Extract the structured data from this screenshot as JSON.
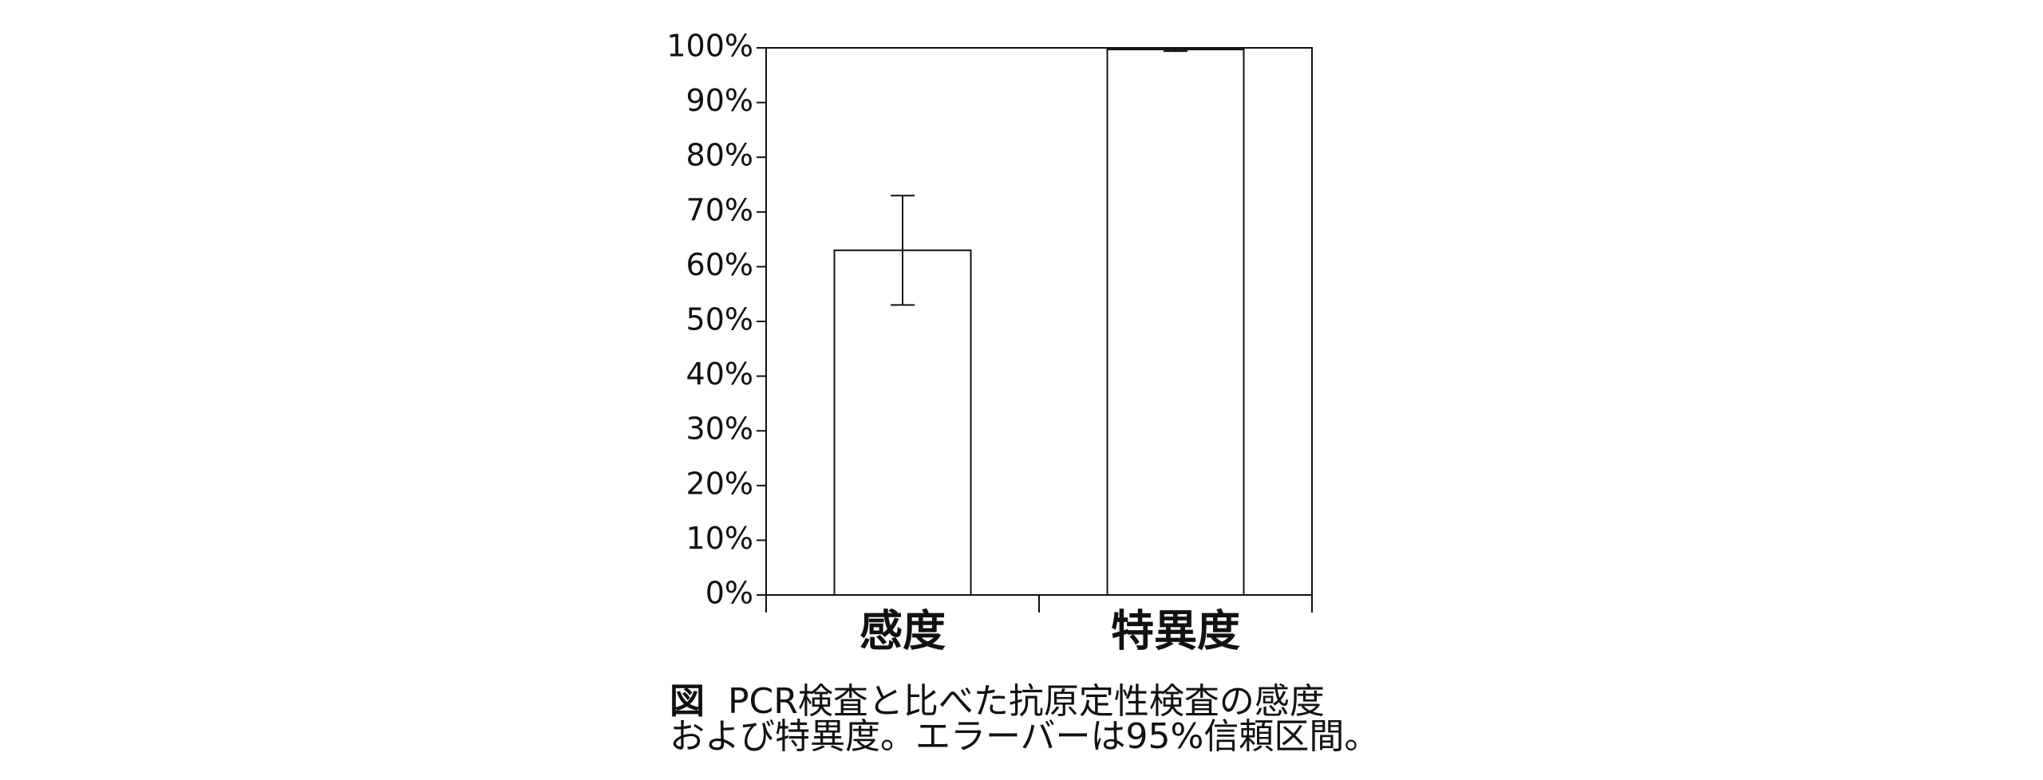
{
  "chart_data": {
    "type": "bar",
    "categories": [
      "感度",
      "特異度"
    ],
    "values": [
      63,
      99.7
    ],
    "errors": [
      10,
      0.3
    ],
    "color": "#ffffff",
    "ylim": [
      0,
      100
    ],
    "yticks": [
      {
        "value": 0,
        "label": "0%"
      },
      {
        "value": 10,
        "label": "10%"
      },
      {
        "value": 20,
        "label": "20%"
      },
      {
        "value": 30,
        "label": "30%"
      },
      {
        "value": 40,
        "label": "40%"
      },
      {
        "value": 50,
        "label": "50%"
      },
      {
        "value": 60,
        "label": "60%"
      },
      {
        "value": 70,
        "label": "70%"
      },
      {
        "value": 80,
        "label": "80%"
      },
      {
        "value": 90,
        "label": "90%"
      },
      {
        "value": 100,
        "label": "100%"
      }
    ],
    "grid": false,
    "figure_label": "図",
    "caption": [
      "PCR検査と比べた抗原定性検査の感度",
      "および特異度。エラーバーは95%信頼区間。"
    ]
  }
}
